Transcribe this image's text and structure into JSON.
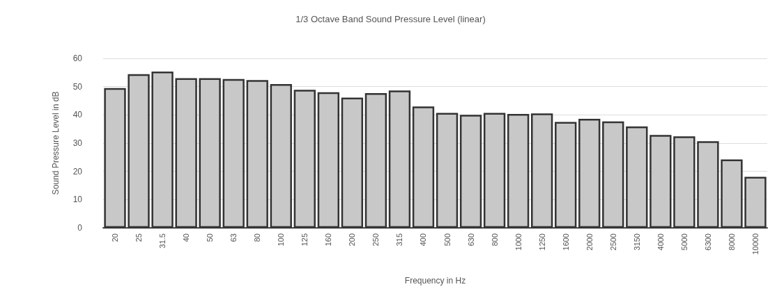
{
  "chart_data": {
    "type": "bar",
    "title": "1/3 Octave Band Sound Pressure Level (linear)",
    "xlabel": "Frequency in Hz",
    "ylabel": "Sound Pressure Level in dB",
    "categories": [
      "20",
      "25",
      "31.5",
      "40",
      "50",
      "63",
      "80",
      "100",
      "125",
      "160",
      "200",
      "250",
      "315",
      "400",
      "500",
      "630",
      "800",
      "1000",
      "1250",
      "1600",
      "2000",
      "2500",
      "3150",
      "4000",
      "5000",
      "6300",
      "8000",
      "10000"
    ],
    "values": [
      49.5,
      54.4,
      55.3,
      53,
      53,
      52.7,
      52.3,
      50.9,
      48.9,
      48,
      46.1,
      47.7,
      48.6,
      43,
      40.7,
      40,
      40.7,
      40.3,
      40.5,
      37.5,
      38.6,
      37.7,
      35.9,
      32.9,
      32.4,
      30.7,
      24.2,
      18.1
    ],
    "color": "#c8c8c8",
    "ylim": [
      0,
      60
    ],
    "yticks": [
      0,
      10,
      20,
      30,
      40,
      50,
      60
    ],
    "grid": "y"
  }
}
